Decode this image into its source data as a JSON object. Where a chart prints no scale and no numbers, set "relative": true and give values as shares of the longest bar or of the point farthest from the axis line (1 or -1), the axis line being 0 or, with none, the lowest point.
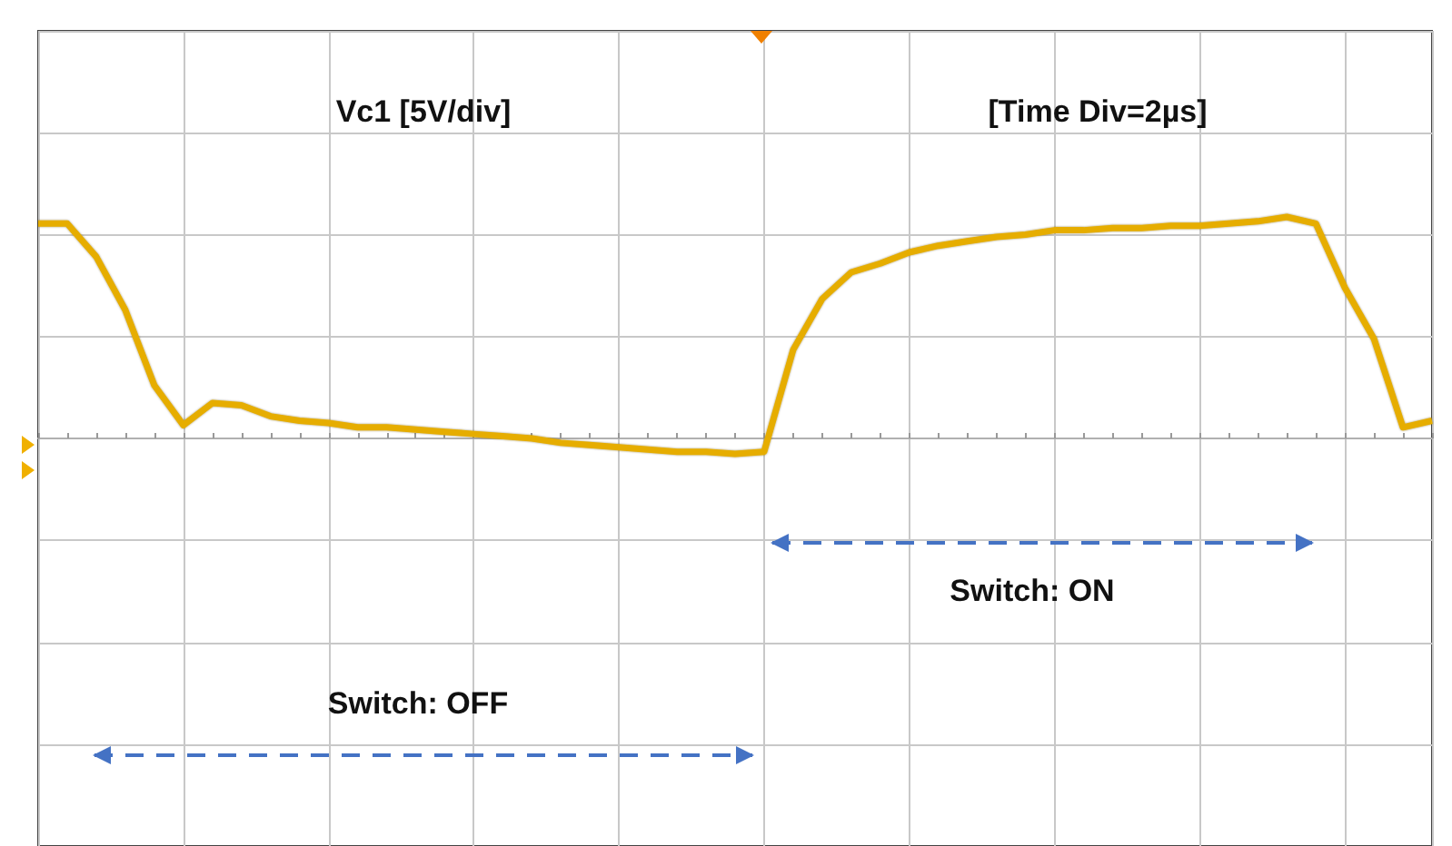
{
  "chart_data": {
    "type": "line",
    "relative": true,
    "grid": true,
    "tick_labels": false,
    "categories": [
      null,
      null,
      null,
      null,
      null,
      null,
      null,
      null,
      null,
      null,
      null,
      null,
      null,
      null,
      null,
      null,
      null,
      null,
      null,
      null,
      null,
      null,
      null,
      null,
      null,
      null,
      null,
      null,
      null,
      null,
      null,
      null,
      null,
      null,
      null,
      null,
      null,
      null,
      null,
      null,
      null,
      null,
      null,
      null,
      null,
      null,
      null,
      null,
      null
    ],
    "series": [
      {
        "color": "#e6ad00",
        "values": [
          0.97,
          0.97,
          0.82,
          0.58,
          0.24,
          0.06,
          0.16,
          0.15,
          0.1,
          0.08,
          0.07,
          0.05,
          0.05,
          0.04,
          0.03,
          0.02,
          0.01,
          0.0,
          -0.02,
          -0.03,
          -0.04,
          -0.05,
          -0.06,
          -0.06,
          -0.07,
          -0.06,
          0.4,
          0.63,
          0.75,
          0.79,
          0.84,
          0.87,
          0.89,
          0.91,
          0.92,
          0.94,
          0.94,
          0.95,
          0.95,
          0.96,
          0.96,
          0.97,
          0.98,
          1,
          0.97,
          0.68,
          0.45,
          0.05,
          0.08
        ]
      }
    ],
    "annotations": [
      "Vc1 [5V/div]",
      "[Time Div=2µs]",
      "Switch: ON",
      "Switch: OFF"
    ]
  }
}
